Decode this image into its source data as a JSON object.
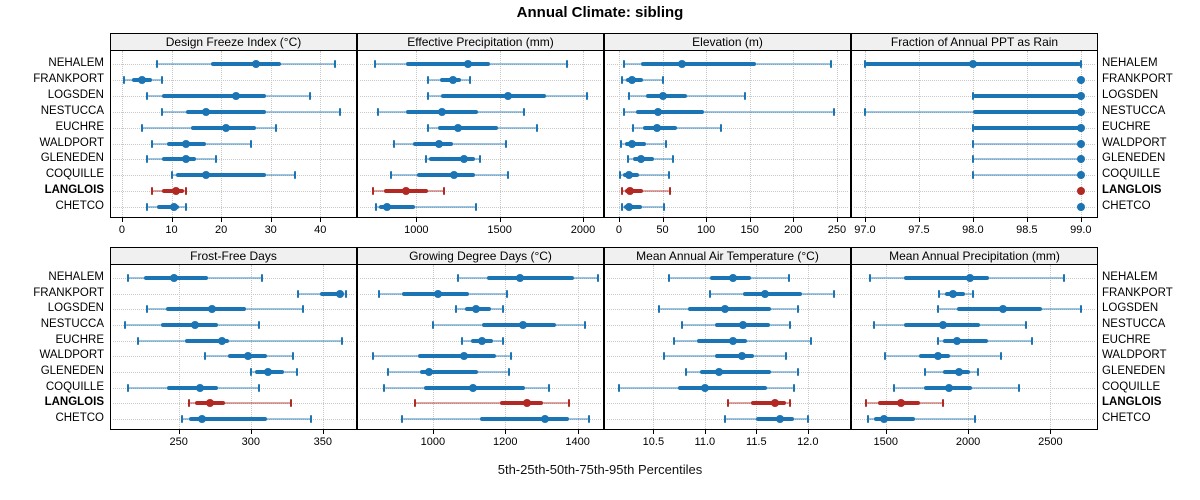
{
  "chart_data": {
    "type": "dotplot",
    "title": "Annual Climate: sibling",
    "caption": "5th-25th-50th-75th-95th Percentiles",
    "percentile_labels": [
      "5th",
      "25th",
      "50th",
      "75th",
      "95th"
    ],
    "categories": [
      "NEHALEM",
      "FRANKPORT",
      "LOGSDEN",
      "NESTUCCA",
      "EUCHRE",
      "WALDPORT",
      "GLENEDEN",
      "COQUILLE",
      "LANGLOIS",
      "CHETCO"
    ],
    "highlight_category": "LANGLOIS",
    "colors": {
      "series": "#1b74b4",
      "series_light": "rgba(27,116,180,0.42)",
      "highlight": "#b22822",
      "highlight_light": "rgba(178,40,34,0.42)",
      "grid": "#c8c8c8",
      "strip_bg": "#f0f0f0",
      "border": "#000000"
    },
    "panels": [
      {
        "title": "Design Freeze Index (°C)",
        "grid_row": 0,
        "grid_col": 0,
        "xlim": [
          -2.2,
          47.2
        ],
        "ticks": [
          0,
          10,
          20,
          30,
          40
        ],
        "tick_labels": [
          "0",
          "10",
          "20",
          "30",
          "40"
        ],
        "series": [
          [
            7,
            18,
            27,
            32,
            43
          ],
          [
            0.5,
            2,
            4,
            6,
            8
          ],
          [
            5,
            8,
            23,
            29,
            38
          ],
          [
            8,
            13,
            17,
            29,
            44
          ],
          [
            4,
            14,
            21,
            27,
            31
          ],
          [
            6,
            9,
            13,
            17,
            26
          ],
          [
            5,
            8,
            13,
            15,
            19
          ],
          [
            10,
            11,
            17,
            29,
            35
          ],
          [
            6,
            8,
            11,
            12.5,
            13
          ],
          [
            5,
            7,
            10.5,
            11.5,
            13
          ]
        ]
      },
      {
        "title": "Effective Precipitation (mm)",
        "grid_row": 0,
        "grid_col": 1,
        "xlim": [
          650,
          2120
        ],
        "ticks": [
          1000,
          1500,
          2000
        ],
        "tick_labels": [
          "1000",
          "1500",
          "2000"
        ],
        "series": [
          [
            750,
            940,
            1310,
            1440,
            1905
          ],
          [
            1070,
            1140,
            1220,
            1270,
            1320
          ],
          [
            1070,
            1145,
            1550,
            1780,
            2025
          ],
          [
            770,
            935,
            1155,
            1370,
            1645
          ],
          [
            1070,
            1130,
            1250,
            1490,
            1725
          ],
          [
            865,
            980,
            1135,
            1220,
            1540
          ],
          [
            1055,
            1075,
            1285,
            1350,
            1380
          ],
          [
            845,
            1005,
            1225,
            1350,
            1550
          ],
          [
            740,
            805,
            935,
            1070,
            1165
          ],
          [
            760,
            775,
            825,
            990,
            1355
          ]
        ]
      },
      {
        "title": "Elevation (m)",
        "grid_row": 0,
        "grid_col": 2,
        "xlim": [
          -16,
          265
        ],
        "ticks": [
          0,
          50,
          100,
          150,
          200,
          250
        ],
        "tick_labels": [
          "0",
          "50",
          "100",
          "150",
          "200",
          "250"
        ],
        "series": [
          [
            6,
            25,
            72,
            157,
            243
          ],
          [
            3,
            8,
            15,
            28,
            51
          ],
          [
            11,
            31,
            51,
            78,
            145
          ],
          [
            6,
            19,
            45,
            97,
            247
          ],
          [
            16,
            28,
            44,
            67,
            117
          ],
          [
            2,
            7,
            15,
            31,
            54
          ],
          [
            10,
            16,
            25,
            40,
            62
          ],
          [
            1,
            5,
            11,
            23,
            57
          ],
          [
            4,
            7,
            13,
            28,
            58
          ],
          [
            4,
            6,
            11,
            26,
            52
          ]
        ]
      },
      {
        "title": "Fraction of Annual PPT as Rain",
        "grid_row": 0,
        "grid_col": 3,
        "xlim": [
          96.88,
          99.15
        ],
        "ticks": [
          97.0,
          97.5,
          98.0,
          98.5,
          99.0
        ],
        "tick_labels": [
          "97.0",
          "97.5",
          "98.0",
          "98.5",
          "99.0"
        ],
        "series": [
          [
            97,
            97,
            98,
            99,
            99
          ],
          [
            99,
            99,
            99,
            99,
            99
          ],
          [
            98,
            98,
            99,
            99,
            99
          ],
          [
            97,
            98,
            99,
            99,
            99
          ],
          [
            98,
            98,
            99,
            99,
            99
          ],
          [
            98,
            99,
            99,
            99,
            99
          ],
          [
            98,
            99,
            99,
            99,
            99
          ],
          [
            98,
            99,
            99,
            99,
            99
          ],
          [
            99,
            99,
            99,
            99,
            99
          ],
          [
            99,
            99,
            99,
            99,
            99
          ]
        ]
      },
      {
        "title": "Frost-Free Days",
        "grid_row": 1,
        "grid_col": 0,
        "xlim": [
          203,
          373
        ],
        "ticks": [
          250,
          300,
          350
        ],
        "tick_labels": [
          "250",
          "300",
          "350"
        ],
        "series": [
          [
            215,
            226,
            247,
            270,
            308
          ],
          [
            333,
            348,
            362,
            364,
            366
          ],
          [
            228,
            241,
            273,
            297,
            336
          ],
          [
            213,
            238,
            261,
            277,
            306
          ],
          [
            222,
            254,
            280,
            285,
            363
          ],
          [
            268,
            284,
            298,
            311,
            329
          ],
          [
            300,
            303,
            312,
            323,
            332
          ],
          [
            215,
            242,
            265,
            277,
            306
          ],
          [
            257,
            261,
            272,
            282,
            328
          ],
          [
            252,
            257,
            266,
            311,
            342
          ]
        ]
      },
      {
        "title": "Growing Degree Days (°C)",
        "grid_row": 1,
        "grid_col": 1,
        "xlim": [
          793,
          1470
        ],
        "ticks": [
          1000,
          1200,
          1400
        ],
        "tick_labels": [
          "1000",
          "1200",
          "1400"
        ],
        "series": [
          [
            1070,
            1150,
            1240,
            1390,
            1455
          ],
          [
            850,
            915,
            1015,
            1100,
            1205
          ],
          [
            1065,
            1090,
            1120,
            1160,
            1195
          ],
          [
            1000,
            1135,
            1250,
            1340,
            1420
          ],
          [
            1080,
            1105,
            1135,
            1165,
            1195
          ],
          [
            835,
            960,
            1085,
            1175,
            1215
          ],
          [
            875,
            965,
            990,
            1125,
            1210
          ],
          [
            865,
            975,
            1110,
            1255,
            1320
          ],
          [
            950,
            1185,
            1260,
            1305,
            1375
          ],
          [
            915,
            1130,
            1310,
            1375,
            1430
          ]
        ]
      },
      {
        "title": "Mean Annual Air Temperature (°C)",
        "grid_row": 1,
        "grid_col": 2,
        "xlim": [
          10.03,
          12.41
        ],
        "ticks": [
          10.5,
          11.0,
          11.5,
          12.0
        ],
        "tick_labels": [
          "10.5",
          "11.0",
          "11.5",
          "12.0"
        ],
        "series": [
          [
            10.65,
            11.05,
            11.27,
            11.45,
            11.82
          ],
          [
            11.05,
            11.37,
            11.58,
            11.94,
            12.25
          ],
          [
            10.55,
            10.84,
            11.2,
            11.64,
            11.9
          ],
          [
            10.78,
            11.1,
            11.37,
            11.63,
            11.83
          ],
          [
            10.7,
            10.92,
            11.27,
            11.41,
            12.03
          ],
          [
            10.6,
            11.1,
            11.36,
            11.48,
            11.79
          ],
          [
            10.82,
            10.95,
            11.14,
            11.64,
            11.9
          ],
          [
            10.17,
            10.74,
            11.0,
            11.6,
            11.87
          ],
          [
            11.22,
            11.45,
            11.68,
            11.79,
            11.83
          ],
          [
            11.2,
            11.5,
            11.73,
            11.87,
            12.0
          ]
        ]
      },
      {
        "title": "Mean Annual Precipitation (mm)",
        "grid_row": 1,
        "grid_col": 3,
        "xlim": [
          1295,
          2783
        ],
        "ticks": [
          1500,
          2000,
          2500
        ],
        "tick_labels": [
          "1500",
          "2000",
          "2500"
        ],
        "series": [
          [
            1405,
            1610,
            2010,
            2130,
            2585
          ],
          [
            1825,
            1860,
            1910,
            1980,
            2030
          ],
          [
            1820,
            1935,
            2215,
            2450,
            2685
          ],
          [
            1430,
            1610,
            1845,
            2070,
            2350
          ],
          [
            1815,
            1850,
            1935,
            2120,
            2390
          ],
          [
            1495,
            1700,
            1820,
            1890,
            2200
          ],
          [
            1740,
            1845,
            1945,
            2010,
            2060
          ],
          [
            1550,
            1730,
            1885,
            2025,
            2310
          ],
          [
            1380,
            1450,
            1590,
            1710,
            1850
          ],
          [
            1390,
            1430,
            1490,
            1680,
            2040
          ]
        ]
      }
    ]
  }
}
